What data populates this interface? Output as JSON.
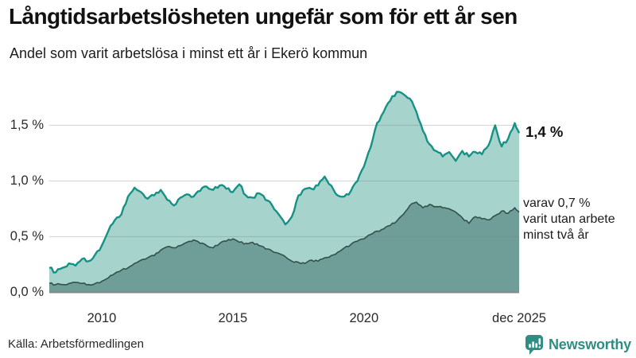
{
  "header": {
    "title": "Långtidsarbetslösheten ungefär som för ett år sen",
    "subtitle": "Andel som varit arbetslösa i minst ett år i Ekerö kommun"
  },
  "chart_data": {
    "type": "area",
    "title": "Långtidsarbetslösheten ungefär som för ett år sen",
    "subtitle": "Andel som varit arbetslösa i minst ett år i Ekerö kommun",
    "unit": "%",
    "grid": "horizontal",
    "legend_position": "none",
    "x_axis": {
      "label": "",
      "start": 2008,
      "step": 0.25,
      "end": 2025.917,
      "ticks": [
        {
          "t": 2010,
          "label": "2010"
        },
        {
          "t": 2015,
          "label": "2015"
        },
        {
          "t": 2020,
          "label": "2020"
        },
        {
          "t": 2025.917,
          "label": "dec 2025"
        }
      ]
    },
    "y_axis": {
      "label": "",
      "min": 0,
      "max": 1.95,
      "ticks": [
        {
          "v": 0.0,
          "label": "0,0 %"
        },
        {
          "v": 0.5,
          "label": "0,5 %"
        },
        {
          "v": 1.0,
          "label": "1,0 %"
        },
        {
          "v": 1.5,
          "label": "1,5 %"
        }
      ]
    },
    "series": [
      {
        "name": "Andel som varit arbetslösa i minst ett år",
        "fill": "#a6d4cc",
        "line": "#179186",
        "line_width": 2.4,
        "jitter": 0.016,
        "last_value_label": "1,4 %",
        "values": [
          0.22,
          0.18,
          0.22,
          0.26,
          0.24,
          0.3,
          0.28,
          0.34,
          0.42,
          0.55,
          0.65,
          0.7,
          0.86,
          0.94,
          0.9,
          0.84,
          0.87,
          0.92,
          0.83,
          0.78,
          0.85,
          0.88,
          0.86,
          0.91,
          0.95,
          0.92,
          0.96,
          0.93,
          0.9,
          0.97,
          0.87,
          0.85,
          0.89,
          0.83,
          0.78,
          0.7,
          0.61,
          0.68,
          0.87,
          0.93,
          0.93,
          0.96,
          1.04,
          0.96,
          0.87,
          0.86,
          0.91,
          1.0,
          1.13,
          1.3,
          1.52,
          1.62,
          1.72,
          1.8,
          1.78,
          1.74,
          1.62,
          1.45,
          1.33,
          1.27,
          1.22,
          1.26,
          1.18,
          1.27,
          1.22,
          1.26,
          1.24,
          1.32,
          1.5,
          1.31,
          1.38,
          1.52,
          1.43
        ]
      },
      {
        "name": "varav utan arbete minst två år",
        "fill": "#6f9d98",
        "line": "#32514b",
        "line_width": 1.6,
        "jitter": 0.009,
        "last_value_label": "0,7 %",
        "values": [
          0.08,
          0.07,
          0.07,
          0.08,
          0.09,
          0.08,
          0.07,
          0.08,
          0.1,
          0.13,
          0.17,
          0.2,
          0.22,
          0.26,
          0.29,
          0.31,
          0.33,
          0.38,
          0.41,
          0.4,
          0.42,
          0.45,
          0.47,
          0.44,
          0.42,
          0.4,
          0.44,
          0.46,
          0.48,
          0.45,
          0.44,
          0.45,
          0.42,
          0.39,
          0.37,
          0.35,
          0.32,
          0.28,
          0.27,
          0.26,
          0.29,
          0.28,
          0.31,
          0.33,
          0.36,
          0.4,
          0.43,
          0.46,
          0.48,
          0.52,
          0.55,
          0.57,
          0.6,
          0.64,
          0.7,
          0.78,
          0.81,
          0.76,
          0.79,
          0.77,
          0.76,
          0.75,
          0.72,
          0.67,
          0.62,
          0.68,
          0.66,
          0.65,
          0.69,
          0.73,
          0.71,
          0.76,
          0.72
        ]
      }
    ],
    "annotations": {
      "end_label": "1,4 %",
      "varav_lines": [
        "varav 0,7 %",
        "varit utan arbete",
        "minst två år"
      ]
    }
  },
  "footer": {
    "source": "Källa: Arbetsförmedlingen",
    "brand": "Newsworthy"
  },
  "colors": {
    "accent_teal": "#179186",
    "area_light": "#a6d4cc",
    "area_dark": "#6f9d98",
    "line_dark": "#32514b",
    "brand_teal": "#2f8e84",
    "gridline": "#dcdee0",
    "axis_line": "#85898c"
  }
}
